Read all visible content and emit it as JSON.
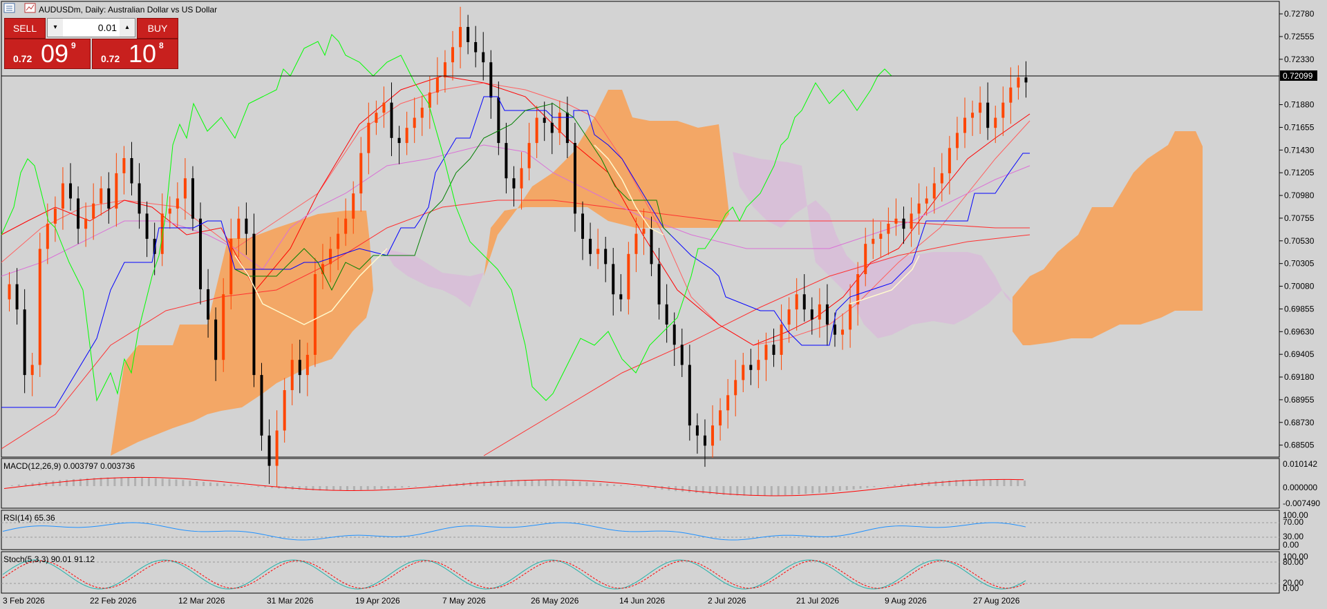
{
  "window": {
    "title": "AUDUSDm, Daily:  Australian Dollar vs US Dollar"
  },
  "icons": {
    "chart_icon": "list-chart-icon",
    "market_icon": "market-watch-icon"
  },
  "trade_panel": {
    "sell_label": "SELL",
    "buy_label": "BUY",
    "lot_value": "0.01",
    "sell_price_prefix": "0.72",
    "sell_price_big": "09",
    "sell_price_sup": "9",
    "buy_price_prefix": "0.72",
    "buy_price_big": "10",
    "buy_price_sup": "8"
  },
  "colors": {
    "background": "#d3d3d3",
    "bull_candle": "#ff4500",
    "bear_candle": "#000000",
    "cloud_bull": "#f4a460",
    "cloud_bear": "#d8bfd8",
    "kijun": "#0000ff",
    "tenkan": "#ff0000",
    "chikou": "#00ff00",
    "macd_signal": "#ff0000",
    "rsi_line": "#1e90ff",
    "stoch_main": "#20b2aa",
    "stoch_signal": "#ff0000",
    "sell_buy_panel": "#c8201e"
  },
  "price_axis": {
    "labels": [
      "0.72780",
      "0.72555",
      "0.72330",
      "0.71880",
      "0.71655",
      "0.71430",
      "0.71205",
      "0.70980",
      "0.70755",
      "0.70530",
      "0.70305",
      "0.70080",
      "0.69855",
      "0.69630",
      "0.69405",
      "0.69180",
      "0.68955",
      "0.68730",
      "0.68505"
    ],
    "current_price": "0.72099"
  },
  "time_axis": {
    "labels": [
      "3 Feb 2026",
      "22 Feb 2026",
      "12 Mar 2026",
      "31 Mar 2026",
      "19 Apr 2026",
      "7 May 2026",
      "26 May 2026",
      "14 Jun 2026",
      "2 Jul 2026",
      "21 Jul 2026",
      "9 Aug 2026",
      "27 Aug 2026"
    ]
  },
  "indicators": {
    "macd": {
      "label": "MACD(12,26,9) 0.003797 0.003736",
      "axis": [
        "0.010142",
        "0.000000",
        "-0.007490"
      ]
    },
    "rsi": {
      "label": "RSI(14) 65.36",
      "axis": [
        "100.00",
        "70.00",
        "30.00",
        "0.00"
      ]
    },
    "stoch": {
      "label": "Stoch(5,3,3) 90.01 91.12",
      "axis": [
        "100.00",
        "80.00",
        "20.00",
        "0.00"
      ]
    }
  },
  "chart_data": {
    "type": "candlestick",
    "symbol": "AUDUSDm",
    "timeframe": "Daily",
    "ylim": [
      0.684,
      0.7289
    ],
    "grid": false,
    "approx_closes": [
      0.701,
      0.6985,
      0.692,
      0.693,
      0.7045,
      0.707,
      0.7085,
      0.711,
      0.7095,
      0.7065,
      0.7075,
      0.709,
      0.7105,
      0.7085,
      0.712,
      0.7135,
      0.711,
      0.708,
      0.7055,
      0.704,
      0.708,
      0.7085,
      0.7095,
      0.7115,
      0.7075,
      0.7005,
      0.6975,
      0.6935,
      0.7,
      0.7055,
      0.7075,
      0.706,
      0.692,
      0.686,
      0.683,
      0.6865,
      0.6905,
      0.6935,
      0.692,
      0.694,
      0.702,
      0.703,
      0.7045,
      0.706,
      0.7075,
      0.71,
      0.714,
      0.717,
      0.718,
      0.719,
      0.7155,
      0.715,
      0.7165,
      0.7175,
      0.7185,
      0.72,
      0.7215,
      0.723,
      0.7245,
      0.7265,
      0.725,
      0.724,
      0.723,
      0.7195,
      0.715,
      0.7115,
      0.7105,
      0.7125,
      0.715,
      0.7175,
      0.717,
      0.716,
      0.718,
      0.715,
      0.708,
      0.7055,
      0.704,
      0.7045,
      0.703,
      0.7,
      0.6995,
      0.704,
      0.706,
      0.7065,
      0.703,
      0.699,
      0.697,
      0.695,
      0.693,
      0.687,
      0.686,
      0.685,
      0.687,
      0.6885,
      0.69,
      0.6915,
      0.693,
      0.6925,
      0.6935,
      0.695,
      0.694,
      0.697,
      0.6985,
      0.7,
      0.6985,
      0.6975,
      0.699,
      0.697,
      0.696,
      0.6965,
      0.699,
      0.702,
      0.705,
      0.7055,
      0.706,
      0.707,
      0.7075,
      0.7065,
      0.708,
      0.709,
      0.7095,
      0.711,
      0.712,
      0.7145,
      0.716,
      0.7175,
      0.718,
      0.719,
      0.7165,
      0.7175,
      0.719,
      0.7205,
      0.7215,
      0.721
    ]
  }
}
